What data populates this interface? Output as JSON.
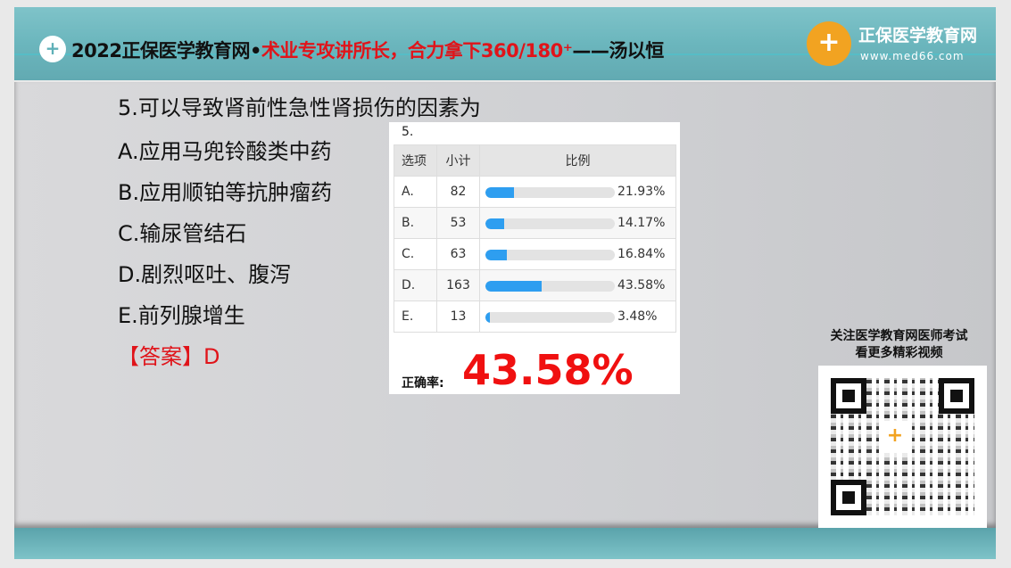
{
  "header": {
    "title_black": "2022正保医学教育网•",
    "title_red": "术业专攻讲所长，合力拿下360/180⁺",
    "title_tail": "——汤以恒",
    "logo_name": "正保医学教育网",
    "logo_url": "www.med66.com",
    "logo_mark": "+"
  },
  "question": {
    "stem": "5.可以导致肾前性急性肾损伤的因素为",
    "options": [
      "A.应用马兜铃酸类中药",
      "B.应用顺铂等抗肿瘤药",
      "C.输尿管结石",
      "D.剧烈呕吐、腹泻",
      "E.前列腺增生"
    ],
    "answer": "【答案】D"
  },
  "stats": {
    "qno": "5.",
    "headers": [
      "选项",
      "小计",
      "比例"
    ],
    "rows": [
      {
        "opt": "A.",
        "count": "82",
        "pct": "21.93%",
        "value": 21.93
      },
      {
        "opt": "B.",
        "count": "53",
        "pct": "14.17%",
        "value": 14.17
      },
      {
        "opt": "C.",
        "count": "63",
        "pct": "16.84%",
        "value": 16.84
      },
      {
        "opt": "D.",
        "count": "163",
        "pct": "43.58%",
        "value": 43.58
      },
      {
        "opt": "E.",
        "count": "13",
        "pct": "3.48%",
        "value": 3.48
      }
    ],
    "rate_label": "正确率:",
    "rate": "43.58%",
    "bar_color": "#2e9ef0"
  },
  "promo": {
    "line1": "关注医学教育网医师考试",
    "line2": "看更多精彩视频"
  }
}
